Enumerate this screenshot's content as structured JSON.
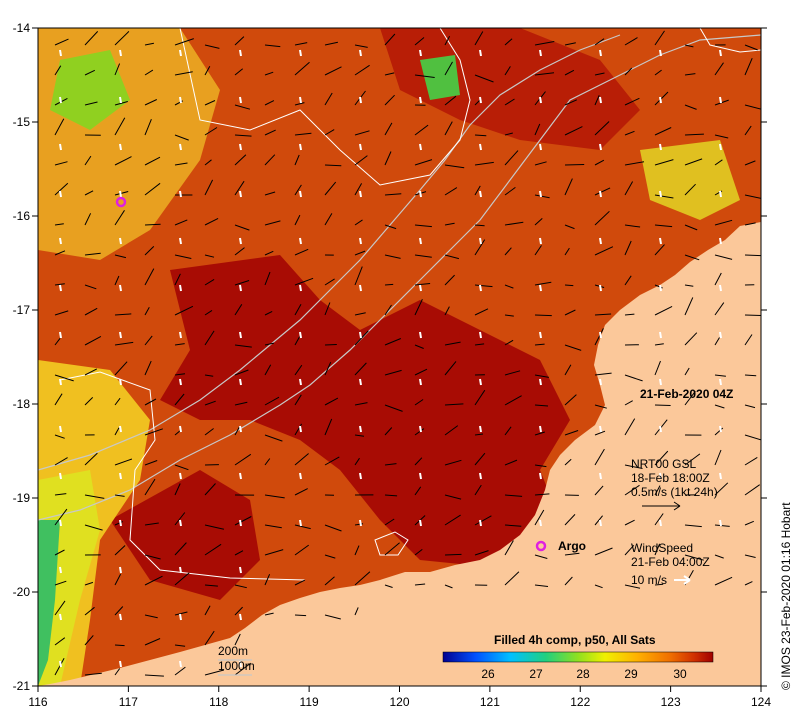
{
  "map": {
    "lon_range": [
      116,
      124
    ],
    "lat_range": [
      -21,
      -14
    ],
    "x_ticks": [
      116,
      117,
      118,
      119,
      120,
      121,
      122,
      123,
      124
    ],
    "y_ticks": [
      -14,
      -15,
      -16,
      -17,
      -18,
      -19,
      -20,
      -21
    ],
    "land_color": "#fbc89a",
    "sea_base_color": "#c43c0a"
  },
  "labels": {
    "date": "21-Feb-2020 04Z",
    "argo": "Argo",
    "current_line1": "NRT00 GSL",
    "current_line2": "18-Feb 18:00Z",
    "current_line3": "0.5m/s (1kt 24h)",
    "wind_line1": "WindSpeed",
    "wind_line2": "21-Feb 04:00Z",
    "wind_line3": "10 m/s",
    "depth_200": "200m",
    "depth_1000": "1000m",
    "colorbar_title": "Filled 4h comp, p50, All Sats",
    "credit": "© IMOS 23-Feb-2020 01:16 Hobart"
  },
  "colorbar": {
    "ticks": [
      "26",
      "27",
      "28",
      "29",
      "30"
    ],
    "colors": [
      "#000090",
      "#0050ff",
      "#00c0ff",
      "#20d080",
      "#90e020",
      "#f0f000",
      "#ffb000",
      "#f07000",
      "#d03000",
      "#a00000"
    ]
  },
  "argo_float": {
    "lon": 121.6,
    "lat": -19.5,
    "color": "#e020e0"
  }
}
